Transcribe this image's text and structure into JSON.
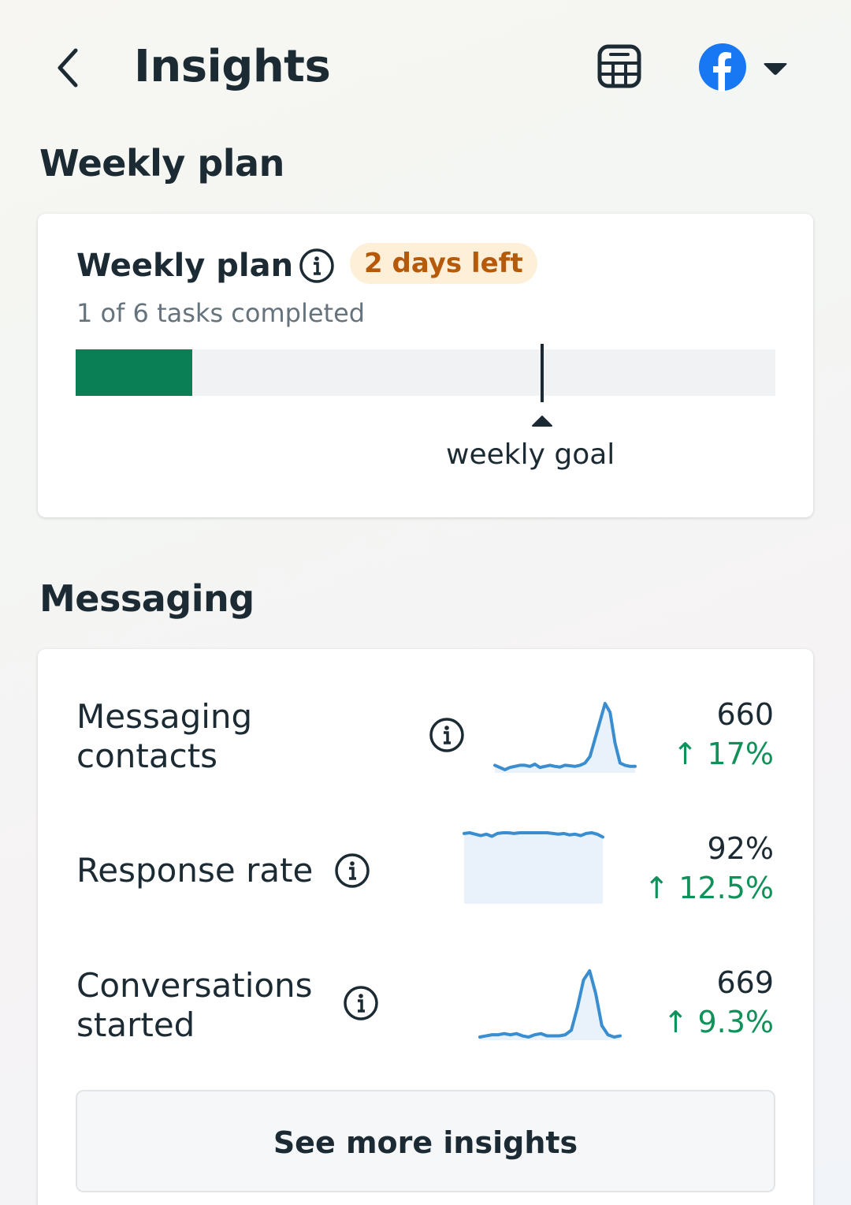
{
  "header": {
    "title": "Insights",
    "back_icon": "chevron-left-icon",
    "calendar_icon": "calendar-icon",
    "account_icon": "facebook-icon",
    "account_dropdown_icon": "caret-down-icon",
    "brand_color": "#1877f2"
  },
  "weekly": {
    "section_title": "Weekly plan",
    "card_title": "Weekly plan",
    "badge": "2 days left",
    "subtitle": "1 of 6 tasks completed",
    "completed": 1,
    "total": 6,
    "goal": 4,
    "goal_label": "weekly goal",
    "fill_color": "#0a7f55"
  },
  "messaging": {
    "section_title": "Messaging",
    "metrics": [
      {
        "label": "Messaging contacts",
        "value": "660",
        "change": "17%",
        "trend": "up",
        "spark": [
          2,
          1,
          0,
          1,
          1.5,
          2,
          2,
          1.5,
          2.5,
          1,
          1.5,
          2,
          1.5,
          1.2,
          2,
          1.8,
          1.5,
          2,
          3,
          6,
          14,
          22,
          30,
          26,
          12,
          3,
          2,
          1.5,
          1.5
        ]
      },
      {
        "label": "Response rate",
        "value": "92%",
        "change": "12.5%",
        "trend": "up",
        "spark": [
          95,
          96,
          94,
          92,
          94,
          91,
          95,
          96,
          96,
          95,
          96,
          96,
          96,
          96,
          96,
          96,
          95,
          94,
          95,
          93,
          94,
          92,
          95,
          96,
          94,
          90
        ]
      },
      {
        "label": "Conversations started",
        "value": "669",
        "change": "9.3%",
        "trend": "up",
        "spark": [
          1,
          1.5,
          2,
          2,
          2.5,
          2,
          2.5,
          1.5,
          1,
          2,
          2.5,
          1.5,
          1.5,
          1.5,
          2,
          4,
          14,
          26,
          30,
          20,
          6,
          2,
          1,
          1.5
        ]
      }
    ],
    "chart_color": "#3a8ed0",
    "see_more": "See more insights"
  }
}
